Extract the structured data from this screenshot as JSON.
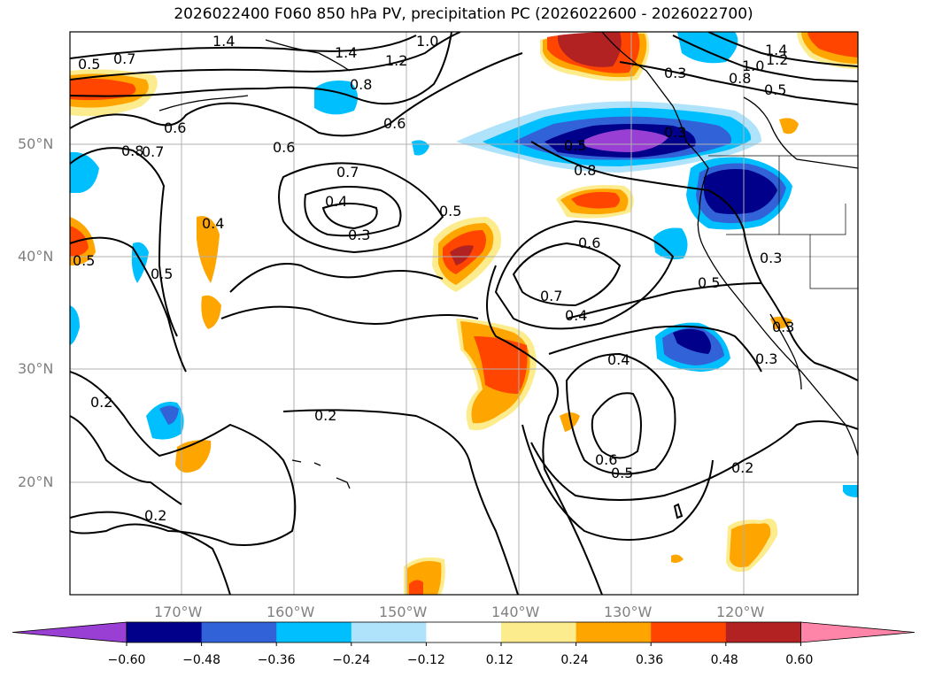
{
  "title": "2026022400 F060 850 hPa PV, precipitation PC (2026022600 - 2026022700)",
  "lat_labels": [
    "50°N",
    "40°N",
    "30°N",
    "20°N"
  ],
  "lon_labels": [
    "170°W",
    "160°W",
    "150°W",
    "140°W",
    "130°W",
    "120°W"
  ],
  "colorbar": {
    "ticks": [
      "−0.60",
      "−0.48",
      "−0.36",
      "−0.24",
      "−0.12",
      "0.12",
      "0.24",
      "0.36",
      "0.48",
      "0.60"
    ],
    "colors": [
      "#9a3fd3",
      "#00008b",
      "#3262d8",
      "#00bfff",
      "#aee3fb",
      "#ffffff",
      "#fdec8e",
      "#ffa500",
      "#ff4500",
      "#b22222",
      "#ff85a8"
    ]
  },
  "contour_labels": [
    "1.4",
    "1.4",
    "1.2",
    "1.0",
    "0.7",
    "0.5",
    "0.8",
    "0.7",
    "0.6",
    "0.8",
    "0.6",
    "0.6",
    "0.7",
    "0.4",
    "0.3",
    "0.5",
    "0.4",
    "0.5",
    "0.5",
    "0.6",
    "0.7",
    "0.4",
    "0.4",
    "0.3",
    "0.2",
    "0.2",
    "0.2",
    "0.6",
    "0.5",
    "0.2",
    "0.5",
    "0.3",
    "0.3",
    "0.3",
    "0.8",
    "0.8",
    "1.0",
    "1.2",
    "1.4",
    "0.5",
    "0.5",
    "0.3"
  ]
}
